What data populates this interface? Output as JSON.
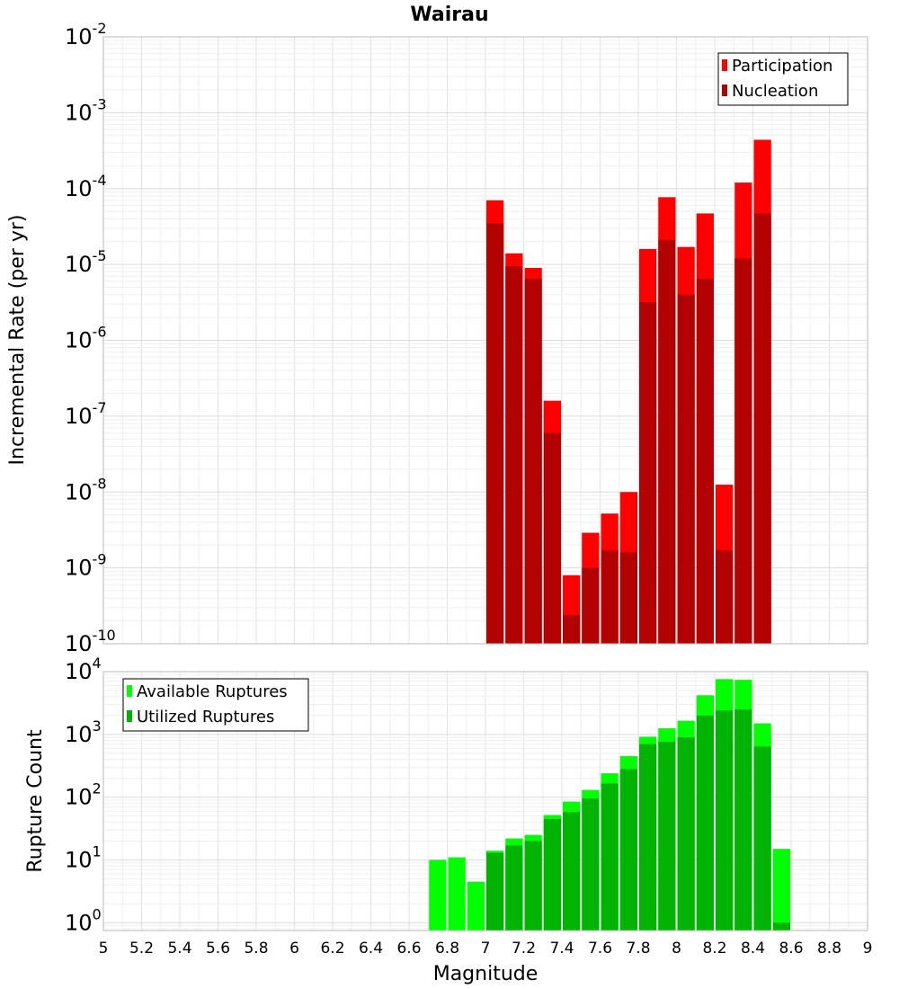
{
  "chart_data": [
    {
      "type": "bar",
      "title": "Wairau",
      "xlabel": "",
      "ylabel": "Incremental Rate (per yr)",
      "yscale": "log",
      "xlim": [
        5,
        9
      ],
      "ylim": [
        1e-10,
        0.01
      ],
      "grid": true,
      "legend_position": "top-right",
      "y_tick_exponents": [
        "-2",
        "-3",
        "-4",
        "-5",
        "-6",
        "-7",
        "-8",
        "-9",
        "-10"
      ],
      "x": [
        7.05,
        7.15,
        7.25,
        7.35,
        7.45,
        7.55,
        7.65,
        7.75,
        7.85,
        7.95,
        8.05,
        8.15,
        8.25,
        8.35,
        8.45
      ],
      "series": [
        {
          "name": "Participation",
          "color": "#ff0000",
          "values": [
            7e-05,
            1.4e-05,
            9e-06,
            1.6e-07,
            8e-10,
            2.9e-09,
            5.2e-09,
            1e-08,
            1.6e-05,
            7.7e-05,
            1.7e-05,
            4.7e-05,
            1.25e-08,
            0.00012,
            0.00044
          ]
        },
        {
          "name": "Nucleation",
          "color": "#b30000",
          "values": [
            3.5e-05,
            9.5e-06,
            6.5e-06,
            6e-08,
            2.4e-10,
            1e-09,
            1.7e-09,
            1.6e-09,
            3.2e-06,
            2.1e-05,
            4e-06,
            6.5e-06,
            1.7e-09,
            1.2e-05,
            4.7e-05
          ]
        }
      ]
    },
    {
      "type": "bar",
      "title": "",
      "xlabel": "Magnitude",
      "ylabel": "Rupture Count",
      "yscale": "log",
      "xlim": [
        5,
        9
      ],
      "ylim": [
        0.75,
        10000
      ],
      "grid": true,
      "legend_position": "top-left",
      "y_tick_exponents": [
        "4",
        "3",
        "2",
        "1",
        "0"
      ],
      "x_ticks": [
        "5",
        "5.2",
        "5.4",
        "5.6",
        "5.8",
        "6",
        "6.2",
        "6.4",
        "6.6",
        "6.8",
        "7",
        "7.2",
        "7.4",
        "7.6",
        "7.8",
        "8",
        "8.2",
        "8.4",
        "8.6",
        "8.8",
        "9"
      ],
      "x": [
        6.75,
        6.85,
        6.95,
        7.05,
        7.15,
        7.25,
        7.35,
        7.45,
        7.55,
        7.65,
        7.75,
        7.85,
        7.95,
        8.05,
        8.15,
        8.25,
        8.35,
        8.45,
        8.55
      ],
      "series": [
        {
          "name": "Available Ruptures",
          "color": "#00ff00",
          "values": [
            10,
            11,
            4.5,
            14,
            22,
            25,
            52,
            85,
            130,
            240,
            450,
            920,
            1250,
            1650,
            4200,
            7600,
            7400,
            1500,
            15
          ]
        },
        {
          "name": "Utilized Ruptures",
          "color": "#00b300",
          "values": [
            0,
            0,
            0,
            13,
            17,
            20,
            45,
            58,
            95,
            165,
            280,
            700,
            760,
            900,
            2000,
            2400,
            2500,
            640,
            1
          ]
        }
      ]
    }
  ]
}
